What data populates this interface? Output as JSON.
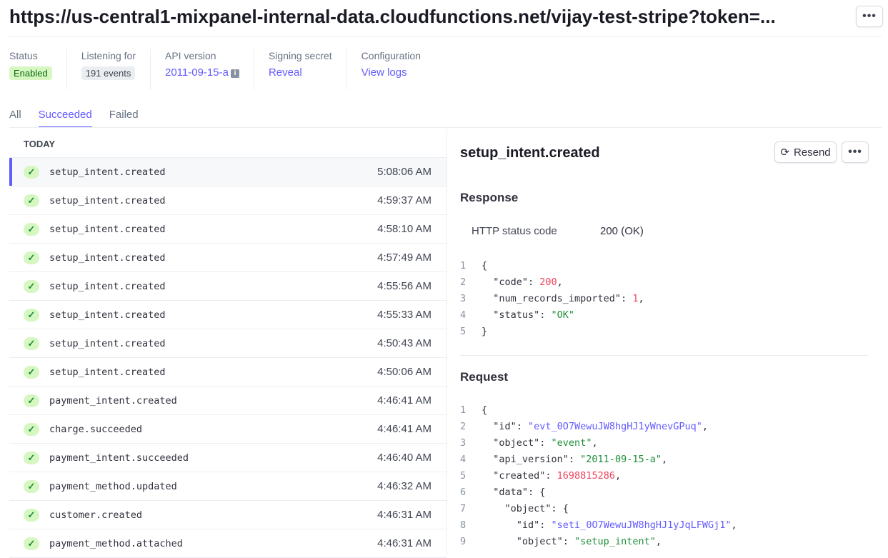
{
  "header": {
    "title": "https://us-central1-mixpanel-internal-data.cloudfunctions.net/vijay-test-stripe?token=...",
    "more_icon": "more-horizontal-icon"
  },
  "meta": {
    "status": {
      "label": "Status",
      "value": "Enabled"
    },
    "listening": {
      "label": "Listening for",
      "value": "191 events"
    },
    "api": {
      "label": "API version",
      "value": "2011-09-15-a",
      "icon": "info-icon"
    },
    "secret": {
      "label": "Signing secret",
      "value": "Reveal"
    },
    "config": {
      "label": "Configuration",
      "value": "View logs"
    }
  },
  "tabs": [
    {
      "label": "All"
    },
    {
      "label": "Succeeded",
      "active": true
    },
    {
      "label": "Failed"
    }
  ],
  "list": {
    "group": "TODAY",
    "events": [
      {
        "name": "setup_intent.created",
        "time": "5:08:06 AM",
        "selected": true
      },
      {
        "name": "setup_intent.created",
        "time": "4:59:37 AM"
      },
      {
        "name": "setup_intent.created",
        "time": "4:58:10 AM"
      },
      {
        "name": "setup_intent.created",
        "time": "4:57:49 AM"
      },
      {
        "name": "setup_intent.created",
        "time": "4:55:56 AM"
      },
      {
        "name": "setup_intent.created",
        "time": "4:55:33 AM"
      },
      {
        "name": "setup_intent.created",
        "time": "4:50:43 AM"
      },
      {
        "name": "setup_intent.created",
        "time": "4:50:06 AM"
      },
      {
        "name": "payment_intent.created",
        "time": "4:46:41 AM"
      },
      {
        "name": "charge.succeeded",
        "time": "4:46:41 AM"
      },
      {
        "name": "payment_intent.succeeded",
        "time": "4:46:40 AM"
      },
      {
        "name": "payment_method.updated",
        "time": "4:46:32 AM"
      },
      {
        "name": "customer.created",
        "time": "4:46:31 AM"
      },
      {
        "name": "payment_method.attached",
        "time": "4:46:31 AM"
      }
    ]
  },
  "detail": {
    "title": "setup_intent.created",
    "resend": "Resend",
    "response": {
      "heading": "Response",
      "status_label": "HTTP status code",
      "status_value": "200 (OK)",
      "code": [
        [
          [
            "p",
            "{"
          ]
        ],
        [
          [
            "p",
            "  \"code\": "
          ],
          [
            "n",
            "200"
          ],
          [
            "p",
            ","
          ]
        ],
        [
          [
            "p",
            "  \"num_records_imported\": "
          ],
          [
            "n",
            "1"
          ],
          [
            "p",
            ","
          ]
        ],
        [
          [
            "p",
            "  \"status\": "
          ],
          [
            "g",
            "\"OK\""
          ]
        ],
        [
          [
            "p",
            "}"
          ]
        ]
      ]
    },
    "request": {
      "heading": "Request",
      "code": [
        [
          [
            "p",
            "{"
          ]
        ],
        [
          [
            "p",
            "  \"id\": "
          ],
          [
            "s",
            "\"evt_0O7WewuJW8hgHJ1yWnevGPuq\""
          ],
          [
            "p",
            ","
          ]
        ],
        [
          [
            "p",
            "  \"object\": "
          ],
          [
            "g",
            "\"event\""
          ],
          [
            "p",
            ","
          ]
        ],
        [
          [
            "p",
            "  \"api_version\": "
          ],
          [
            "g",
            "\"2011-09-15-a\""
          ],
          [
            "p",
            ","
          ]
        ],
        [
          [
            "p",
            "  \"created\": "
          ],
          [
            "n",
            "1698815286"
          ],
          [
            "p",
            ","
          ]
        ],
        [
          [
            "p",
            "  \"data\": {"
          ]
        ],
        [
          [
            "p",
            "    \"object\": {"
          ]
        ],
        [
          [
            "p",
            "      \"id\": "
          ],
          [
            "s",
            "\"seti_0O7WewuJW8hgHJ1yJqLFWGj1\""
          ],
          [
            "p",
            ","
          ]
        ],
        [
          [
            "p",
            "      \"object\": "
          ],
          [
            "g",
            "\"setup_intent\""
          ],
          [
            "p",
            ","
          ]
        ]
      ]
    }
  }
}
